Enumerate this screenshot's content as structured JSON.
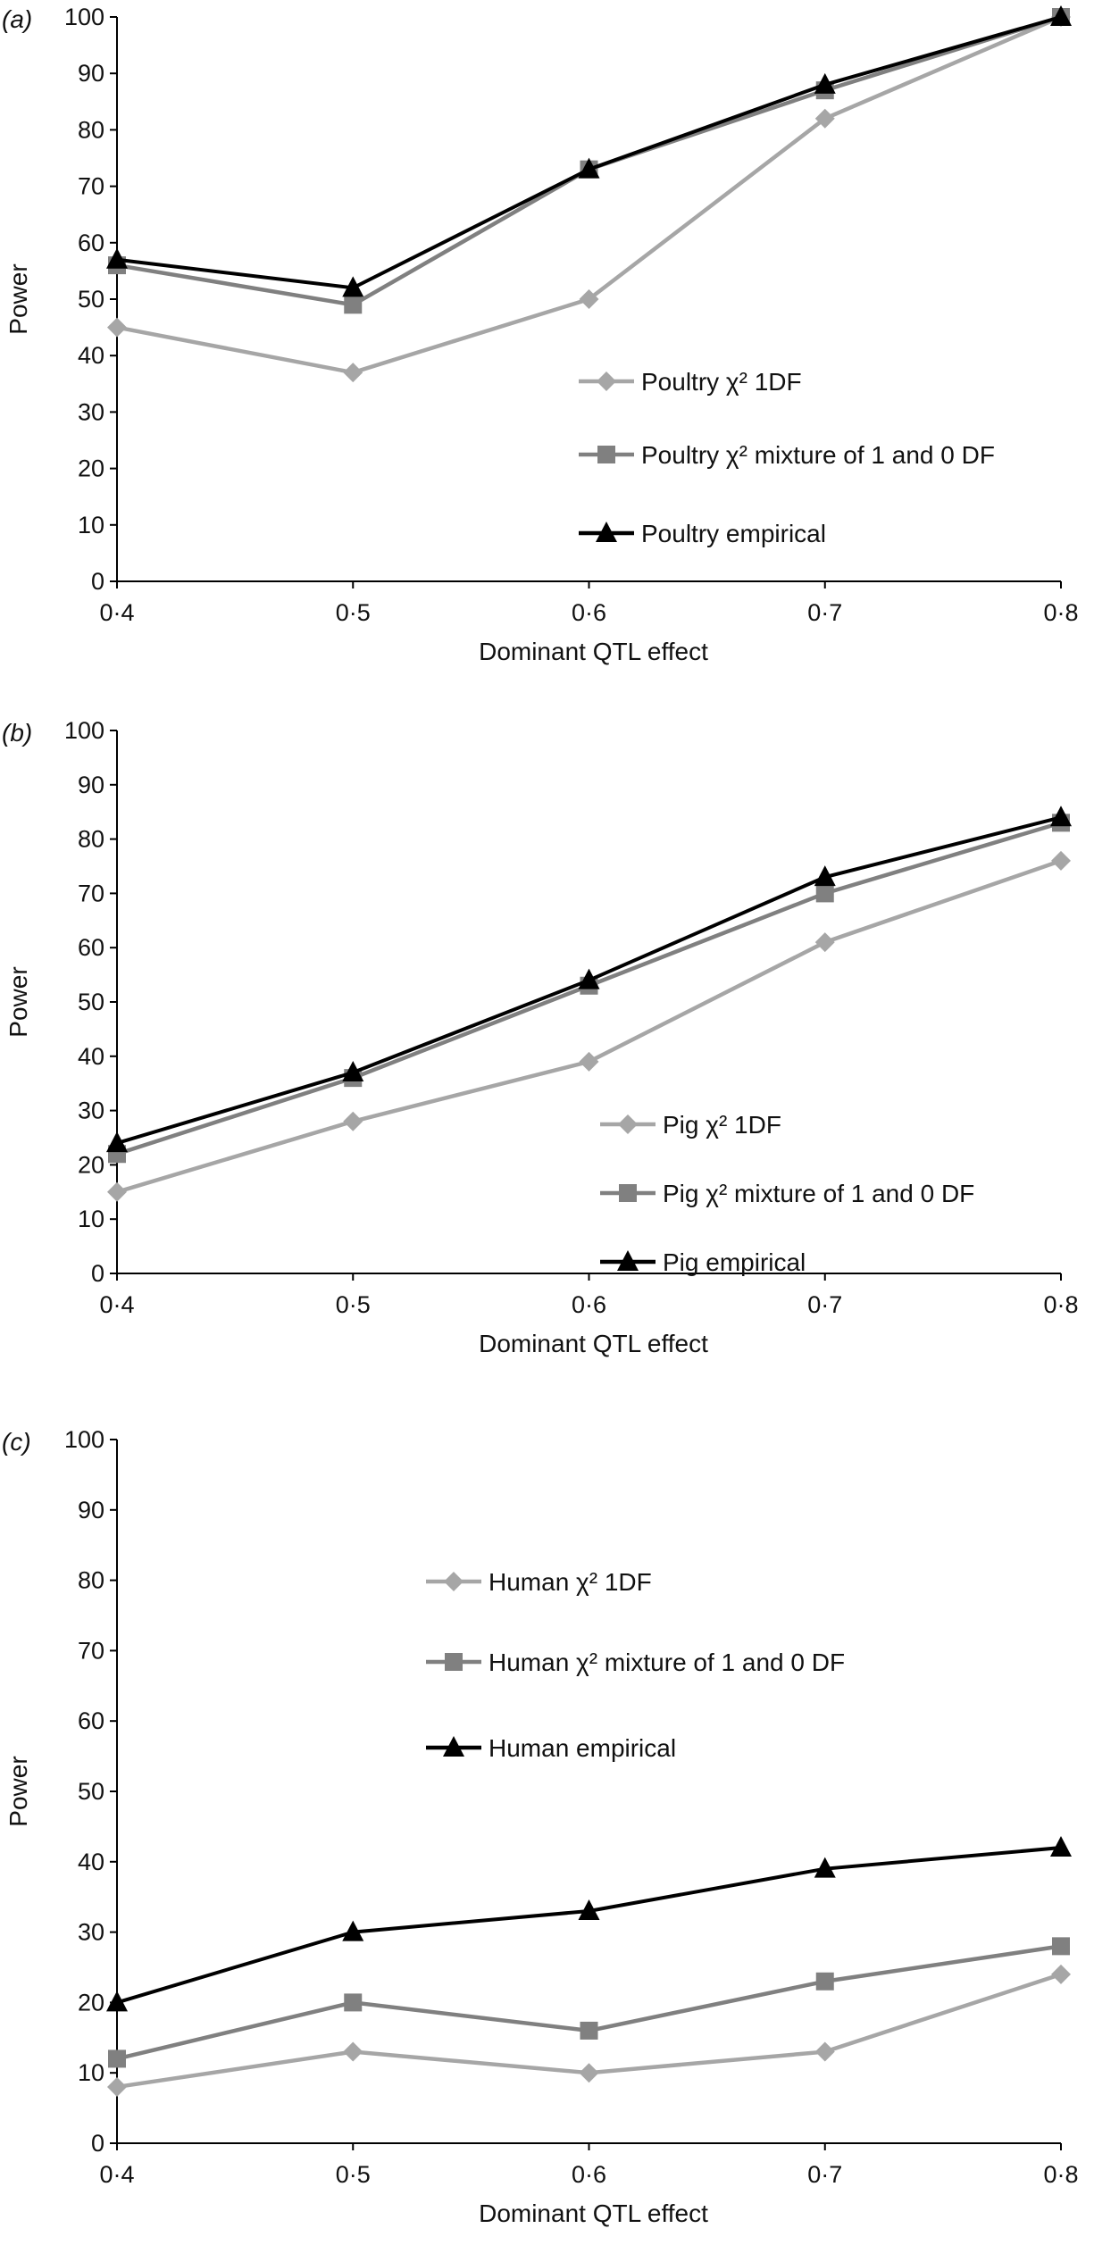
{
  "chart_data": [
    {
      "type": "line",
      "panel_label": "(a)",
      "xlabel": "Dominant QTL effect",
      "ylabel": "Power",
      "x": [
        "0·4",
        "0·5",
        "0·6",
        "0·7",
        "0·8"
      ],
      "ylim": [
        0,
        100
      ],
      "yticks": [
        0,
        10,
        20,
        30,
        40,
        50,
        60,
        70,
        80,
        90,
        100
      ],
      "grid": false,
      "legend_placement": "center-right",
      "series": [
        {
          "name": "Poultry χ² 1DF",
          "marker": "diamond",
          "color": "#a6a6a6",
          "values": [
            45,
            37,
            50,
            82,
            100
          ]
        },
        {
          "name": "Poultry χ² mixture of 1 and 0 DF",
          "marker": "square",
          "color": "#808080",
          "values": [
            56,
            49,
            73,
            87,
            100
          ]
        },
        {
          "name": "Poultry empirical",
          "marker": "triangle",
          "color": "#000000",
          "values": [
            57,
            52,
            73,
            88,
            100
          ]
        }
      ]
    },
    {
      "type": "line",
      "panel_label": "(b)",
      "xlabel": "Dominant QTL effect",
      "ylabel": "Power",
      "x": [
        "0·4",
        "0·5",
        "0·6",
        "0·7",
        "0·8"
      ],
      "ylim": [
        0,
        100
      ],
      "yticks": [
        0,
        10,
        20,
        30,
        40,
        50,
        60,
        70,
        80,
        90,
        100
      ],
      "grid": false,
      "legend_placement": "bottom-right",
      "series": [
        {
          "name": "Pig χ² 1DF",
          "marker": "diamond",
          "color": "#a6a6a6",
          "values": [
            15,
            28,
            39,
            61,
            76
          ]
        },
        {
          "name": "Pig χ² mixture of 1 and 0 DF",
          "marker": "square",
          "color": "#808080",
          "values": [
            22,
            36,
            53,
            70,
            83
          ]
        },
        {
          "name": "Pig empirical",
          "marker": "triangle",
          "color": "#000000",
          "values": [
            24,
            37,
            54,
            73,
            84
          ]
        }
      ]
    },
    {
      "type": "line",
      "panel_label": "(c)",
      "xlabel": "Dominant QTL effect",
      "ylabel": "Power",
      "x": [
        "0·4",
        "0·5",
        "0·6",
        "0·7",
        "0·8"
      ],
      "ylim": [
        0,
        100
      ],
      "yticks": [
        0,
        10,
        20,
        30,
        40,
        50,
        60,
        70,
        80,
        90,
        100
      ],
      "grid": false,
      "legend_placement": "top-center",
      "series": [
        {
          "name": "Human χ² 1DF",
          "marker": "diamond",
          "color": "#a6a6a6",
          "values": [
            8,
            13,
            10,
            13,
            24
          ]
        },
        {
          "name": "Human χ² mixture of 1 and 0 DF",
          "marker": "square",
          "color": "#808080",
          "values": [
            12,
            20,
            16,
            23,
            28
          ]
        },
        {
          "name": "Human empirical",
          "marker": "triangle",
          "color": "#000000",
          "values": [
            20,
            30,
            33,
            39,
            42
          ]
        }
      ]
    }
  ]
}
